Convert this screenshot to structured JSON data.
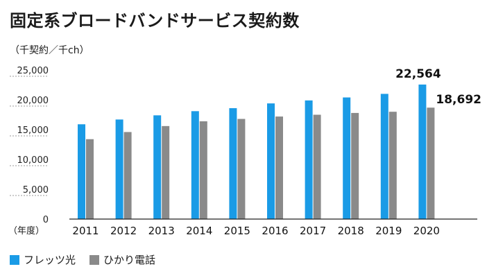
{
  "header": {
    "title": "固定系ブロードバンドサービス契約数",
    "unit": "（千契約／千ch）"
  },
  "chart_data": {
    "type": "bar",
    "title": "固定系ブロードバンドサービス契約数",
    "ylabel": "（千契約／千ch）",
    "xlabel": "（年度）",
    "categories": [
      "2011",
      "2012",
      "2013",
      "2014",
      "2015",
      "2016",
      "2017",
      "2018",
      "2019",
      "2020"
    ],
    "ylim": [
      0,
      25000
    ],
    "yticks": [
      "0",
      "5,000",
      "10,000",
      "15,000",
      "20,000",
      "25,000"
    ],
    "ytick_values": [
      0,
      5000,
      10000,
      15000,
      20000,
      25000
    ],
    "grid": false,
    "legend_position": "bottom-left",
    "series": [
      {
        "name": "フレッツ光",
        "color": "#1a9be6",
        "values": [
          15900,
          16700,
          17400,
          18100,
          18600,
          19400,
          19900,
          20400,
          21000,
          22564
        ]
      },
      {
        "name": "ひかり電話",
        "color": "#8a8a8a",
        "values": [
          13400,
          14600,
          15600,
          16400,
          16800,
          17200,
          17500,
          17800,
          18000,
          18692
        ]
      }
    ],
    "annotations": [
      {
        "series": 0,
        "category": "2020",
        "text": "22,564"
      },
      {
        "series": 1,
        "category": "2020",
        "text": "18,692"
      }
    ]
  }
}
